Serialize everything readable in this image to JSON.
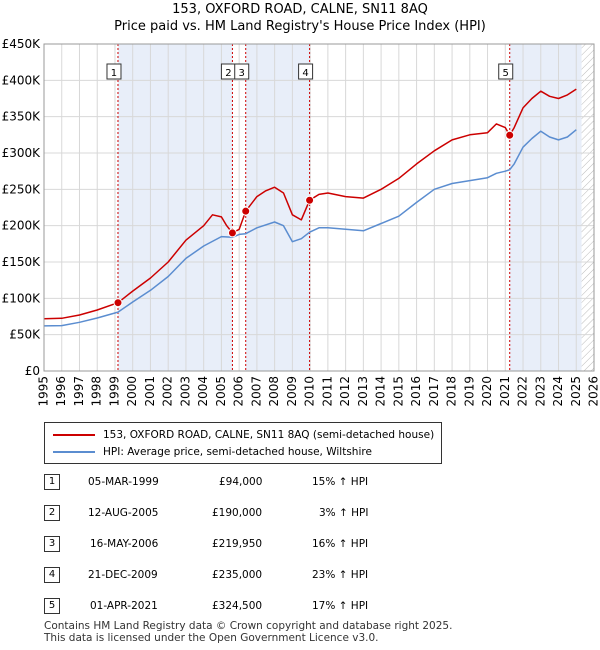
{
  "title_line1": "153, OXFORD ROAD, CALNE, SN11 8AQ",
  "title_line2": "Price paid vs. HM Land Registry's House Price Index (HPI)",
  "chart_data": {
    "type": "line",
    "ylim": [
      0,
      450000
    ],
    "xlim": [
      1995,
      2026
    ],
    "y_ticks": [
      0,
      50000,
      100000,
      150000,
      200000,
      250000,
      300000,
      350000,
      400000,
      450000
    ],
    "y_tick_labels": [
      "£0",
      "£50K",
      "£100K",
      "£150K",
      "£200K",
      "£250K",
      "£300K",
      "£350K",
      "£400K",
      "£450K"
    ],
    "x_ticks": [
      1995,
      1996,
      1997,
      1998,
      1999,
      2000,
      2001,
      2002,
      2003,
      2004,
      2005,
      2006,
      2007,
      2008,
      2009,
      2010,
      2011,
      2012,
      2013,
      2014,
      2015,
      2016,
      2017,
      2018,
      2019,
      2020,
      2021,
      2022,
      2023,
      2024,
      2025,
      2026
    ],
    "x_tick_labels": [
      "1995",
      "1996",
      "1997",
      "1998",
      "1999",
      "2000",
      "2001",
      "2002",
      "2003",
      "2004",
      "2005",
      "2006",
      "2007",
      "2008",
      "2009",
      "2010",
      "2011",
      "2012",
      "2013",
      "2014",
      "2015",
      "2016",
      "2017",
      "2018",
      "2019",
      "2020",
      "2021",
      "2022",
      "2023",
      "2024",
      "2025",
      "2026"
    ],
    "forecast_start": 2025.3,
    "series": [
      {
        "name": "153, OXFORD ROAD, CALNE, SN11 8AQ (semi-detached house)",
        "color": "#cc0000",
        "points": [
          [
            1995.0,
            72000
          ],
          [
            1996.0,
            72500
          ],
          [
            1997.0,
            77000
          ],
          [
            1998.0,
            84000
          ],
          [
            1999.17,
            94000
          ],
          [
            2000.0,
            110000
          ],
          [
            2001.0,
            128000
          ],
          [
            2002.0,
            150000
          ],
          [
            2003.0,
            180000
          ],
          [
            2004.0,
            200000
          ],
          [
            2004.5,
            215000
          ],
          [
            2005.0,
            212000
          ],
          [
            2005.3,
            200000
          ],
          [
            2005.62,
            190000
          ],
          [
            2006.0,
            195000
          ],
          [
            2006.37,
            219950
          ],
          [
            2007.0,
            240000
          ],
          [
            2007.5,
            248000
          ],
          [
            2008.0,
            253000
          ],
          [
            2008.5,
            245000
          ],
          [
            2009.0,
            215000
          ],
          [
            2009.5,
            208000
          ],
          [
            2009.97,
            235000
          ],
          [
            2010.5,
            243000
          ],
          [
            2011.0,
            245000
          ],
          [
            2012.0,
            240000
          ],
          [
            2013.0,
            238000
          ],
          [
            2014.0,
            250000
          ],
          [
            2015.0,
            265000
          ],
          [
            2016.0,
            285000
          ],
          [
            2017.0,
            303000
          ],
          [
            2018.0,
            318000
          ],
          [
            2019.0,
            325000
          ],
          [
            2020.0,
            328000
          ],
          [
            2020.5,
            340000
          ],
          [
            2021.0,
            335000
          ],
          [
            2021.25,
            324500
          ],
          [
            2021.5,
            335000
          ],
          [
            2022.0,
            362000
          ],
          [
            2022.5,
            375000
          ],
          [
            2023.0,
            385000
          ],
          [
            2023.5,
            378000
          ],
          [
            2024.0,
            375000
          ],
          [
            2024.5,
            380000
          ],
          [
            2025.0,
            388000
          ]
        ]
      },
      {
        "name": "HPI: Average price, semi-detached house, Wiltshire",
        "color": "#5b8dd0",
        "points": [
          [
            1995.0,
            62000
          ],
          [
            1996.0,
            62500
          ],
          [
            1997.0,
            67000
          ],
          [
            1998.0,
            73000
          ],
          [
            1999.17,
            81000
          ],
          [
            2000.0,
            95000
          ],
          [
            2001.0,
            111000
          ],
          [
            2002.0,
            130000
          ],
          [
            2003.0,
            155000
          ],
          [
            2004.0,
            172000
          ],
          [
            2005.0,
            185000
          ],
          [
            2005.62,
            184000
          ],
          [
            2006.0,
            188000
          ],
          [
            2006.37,
            189000
          ],
          [
            2007.0,
            197000
          ],
          [
            2008.0,
            205000
          ],
          [
            2008.5,
            200000
          ],
          [
            2009.0,
            178000
          ],
          [
            2009.5,
            182000
          ],
          [
            2009.97,
            191000
          ],
          [
            2010.5,
            197000
          ],
          [
            2011.0,
            197000
          ],
          [
            2012.0,
            195000
          ],
          [
            2013.0,
            193000
          ],
          [
            2014.0,
            203000
          ],
          [
            2015.0,
            213000
          ],
          [
            2016.0,
            232000
          ],
          [
            2017.0,
            250000
          ],
          [
            2018.0,
            258000
          ],
          [
            2019.0,
            262000
          ],
          [
            2020.0,
            266000
          ],
          [
            2020.5,
            272000
          ],
          [
            2021.0,
            275000
          ],
          [
            2021.25,
            277000
          ],
          [
            2021.5,
            285000
          ],
          [
            2022.0,
            308000
          ],
          [
            2022.5,
            320000
          ],
          [
            2023.0,
            330000
          ],
          [
            2023.5,
            322000
          ],
          [
            2024.0,
            318000
          ],
          [
            2024.5,
            322000
          ],
          [
            2025.0,
            332000
          ]
        ]
      }
    ],
    "sales": [
      {
        "label": "1",
        "x": 1999.17,
        "y": 94000
      },
      {
        "label": "2",
        "x": 2005.62,
        "y": 190000
      },
      {
        "label": "3",
        "x": 2006.37,
        "y": 219950
      },
      {
        "label": "4",
        "x": 2009.97,
        "y": 235000
      },
      {
        "label": "5",
        "x": 2021.25,
        "y": 324500
      }
    ]
  },
  "legend": {
    "property": "153, OXFORD ROAD, CALNE, SN11 8AQ (semi-detached house)",
    "hpi": "HPI: Average price, semi-detached house, Wiltshire",
    "property_color": "#cc0000",
    "hpi_color": "#5b8dd0"
  },
  "sales_table": [
    {
      "num": "1",
      "date": "05-MAR-1999",
      "price": "£94,000",
      "hpi": "15% ↑ HPI"
    },
    {
      "num": "2",
      "date": "12-AUG-2005",
      "price": "£190,000",
      "hpi": "3% ↑ HPI"
    },
    {
      "num": "3",
      "date": "16-MAY-2006",
      "price": "£219,950",
      "hpi": "16% ↑ HPI"
    },
    {
      "num": "4",
      "date": "21-DEC-2009",
      "price": "£235,000",
      "hpi": "23% ↑ HPI"
    },
    {
      "num": "5",
      "date": "01-APR-2021",
      "price": "£324,500",
      "hpi": "17% ↑ HPI"
    }
  ],
  "footer_line1": "Contains HM Land Registry data © Crown copyright and database right 2025.",
  "footer_line2": "This data is licensed under the Open Government Licence v3.0."
}
